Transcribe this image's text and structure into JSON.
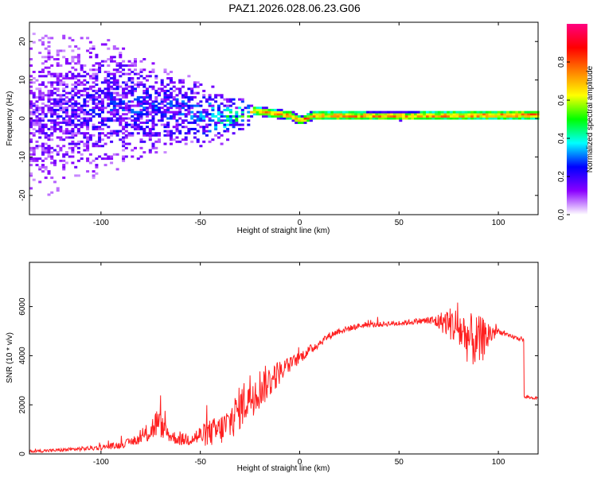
{
  "title": "PAZ1.2026.028.06.23.G06",
  "chart_data": [
    {
      "type": "heatmap",
      "title": "PAZ1.2026.028.06.23.G06",
      "xlabel": "Height of straight line (km)",
      "ylabel": "Frequency (Hz)",
      "xlim": [
        -136,
        120
      ],
      "ylim": [
        -25,
        25
      ],
      "xticks": [
        -100,
        -50,
        0,
        50,
        100
      ],
      "yticks": [
        -20,
        -10,
        0,
        10,
        20
      ],
      "xtick_labels": [
        "-100",
        "-50",
        "0",
        "50",
        "100"
      ],
      "ytick_labels": [
        "-20",
        "-10",
        "0",
        "10",
        "20"
      ],
      "colorbar": {
        "label": "Normalized spectral amplitude",
        "range": [
          0,
          1
        ],
        "ticks": [
          0.0,
          0.2,
          0.4,
          0.6,
          0.8
        ],
        "tick_labels": [
          "0.0",
          "0.2",
          "0.4",
          "0.6",
          "0.8"
        ],
        "colors": [
          "#ffffff",
          "#8a00ff",
          "#0000ff",
          "#00ffff",
          "#00ff00",
          "#ffff00",
          "#ff8000",
          "#ff0000",
          "#ff0080"
        ]
      },
      "ridge": [
        {
          "x": -136,
          "f_center": 0,
          "f_spread": 22,
          "amp": 0.18
        },
        {
          "x": -100,
          "f_center": 3,
          "f_spread": 18,
          "amp": 0.25
        },
        {
          "x": -60,
          "f_center": 2,
          "f_spread": 10,
          "amp": 0.3
        },
        {
          "x": -40,
          "f_center": 0,
          "f_spread": 7,
          "amp": 0.4
        },
        {
          "x": -26,
          "f_center": 1,
          "f_spread": 3,
          "amp": 0.55
        },
        {
          "x": -24,
          "f_center": 1.8,
          "f_spread": 1.2,
          "amp": 0.7
        },
        {
          "x": -5,
          "f_center": 0.5,
          "f_spread": 1.2,
          "amp": 0.75
        },
        {
          "x": 0,
          "f_center": -0.8,
          "f_spread": 1.2,
          "amp": 0.8
        },
        {
          "x": 6,
          "f_center": 0.5,
          "f_spread": 1.2,
          "amp": 0.75
        },
        {
          "x": 50,
          "f_center": 0.4,
          "f_spread": 1.2,
          "amp": 0.75
        },
        {
          "x": 120,
          "f_center": 0.7,
          "f_spread": 1.2,
          "amp": 0.78
        }
      ]
    },
    {
      "type": "line",
      "xlabel": "Height of straight line (km)",
      "ylabel": "SNR (10 * v/v)",
      "xlim": [
        -136,
        120
      ],
      "ylim": [
        0,
        7800
      ],
      "xticks": [
        -100,
        -50,
        0,
        50,
        100
      ],
      "yticks": [
        0,
        2000,
        4000,
        6000
      ],
      "xtick_labels": [
        "-100",
        "-50",
        "0",
        "50",
        "100"
      ],
      "ytick_labels": [
        "0",
        "2000",
        "4000",
        "6000"
      ],
      "color": "#ff2020",
      "series": [
        {
          "name": "SNR",
          "x": [
            -136,
            -120,
            -110,
            -100,
            -90,
            -80,
            -75,
            -72,
            -70,
            -65,
            -60,
            -55,
            -50,
            -45,
            -40,
            -35,
            -30,
            -25,
            -20,
            -15,
            -10,
            -5,
            0,
            5,
            10,
            15,
            20,
            25,
            30,
            35,
            40,
            45,
            50,
            55,
            60,
            65,
            70,
            75,
            80,
            85,
            90,
            95,
            100,
            105,
            110,
            112,
            113,
            115,
            120
          ],
          "values": [
            100,
            150,
            200,
            250,
            350,
            600,
            900,
            1200,
            1100,
            700,
            550,
            600,
            700,
            800,
            900,
            1200,
            1800,
            2300,
            2600,
            2900,
            3300,
            3600,
            3900,
            4200,
            4500,
            4800,
            5000,
            5100,
            5200,
            5250,
            5250,
            5300,
            5300,
            5350,
            5400,
            5400,
            5350,
            5300,
            5000,
            4600,
            4400,
            4800,
            5000,
            4800,
            4700,
            4650,
            2300,
            2300,
            2250
          ],
          "noise": [
            80,
            100,
            120,
            150,
            200,
            300,
            700,
            900,
            700,
            400,
            350,
            450,
            600,
            800,
            900,
            1100,
            1300,
            1400,
            1200,
            1000,
            700,
            450,
            350,
            300,
            250,
            200,
            200,
            180,
            160,
            150,
            150,
            150,
            150,
            160,
            180,
            250,
            500,
            900,
            1300,
            1500,
            1600,
            900,
            150,
            120,
            120,
            100,
            80,
            80,
            80
          ]
        }
      ]
    }
  ]
}
